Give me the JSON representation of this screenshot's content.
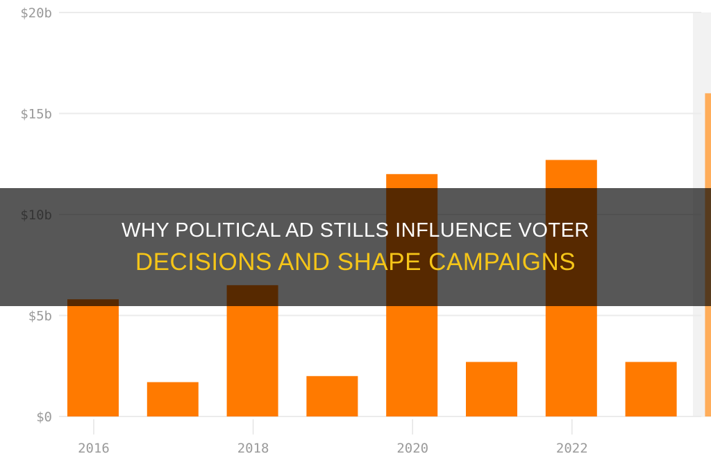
{
  "overlay": {
    "title_line1": "WHY POLITICAL AD STILLS INFLUENCE VOTER",
    "title_line2": "DECISIONS AND SHAPE CAMPAIGNS"
  },
  "chart_data": {
    "type": "bar",
    "categories": [
      "2016",
      "2017",
      "2018",
      "2019",
      "2020",
      "2021",
      "2022",
      "2023",
      "2024"
    ],
    "values": [
      5.8,
      1.7,
      6.5,
      2.0,
      12.0,
      2.7,
      12.7,
      2.7,
      16.0
    ],
    "value_unit": "billion USD",
    "x_tick_labels": [
      "2016",
      "2018",
      "2020",
      "2022"
    ],
    "y_tick_labels": [
      "$0",
      "$5b",
      "$10b",
      "$15b",
      "$20b"
    ],
    "y_ticks": [
      0,
      5,
      10,
      15,
      20
    ],
    "ylim": [
      0,
      20
    ],
    "grid": true,
    "bar_color": "#ff7a00",
    "highlight_color": "#ffad5a",
    "highlight_region_color": "#f2f2f2",
    "highlighted_category": "2024"
  }
}
